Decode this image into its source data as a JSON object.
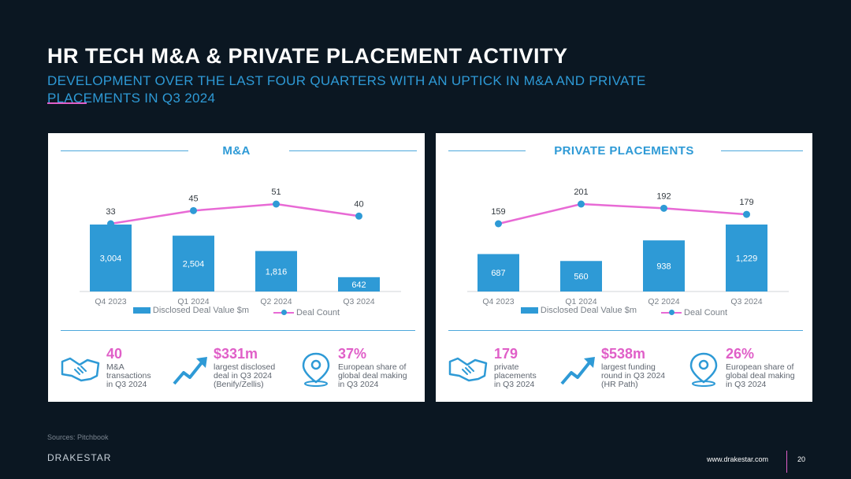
{
  "title": "HR TECH M&A & PRIVATE PLACEMENT ACTIVITY",
  "subtitle": "DEVELOPMENT OVER THE LAST FOUR QUARTERS WITH AN UPTICK IN M&A AND PRIVATE PLACEMENTS IN Q3 2024",
  "colors": {
    "bar": "#2e9ad6",
    "line": "#e86ad5",
    "accent": "#e05fc8",
    "bg": "#0b1722"
  },
  "chart_data": [
    {
      "type": "bar+line",
      "title": "M&A",
      "categories": [
        "Q4 2023",
        "Q1 2024",
        "Q2 2024",
        "Q3 2024"
      ],
      "series": [
        {
          "name": "Disclosed Deal Value $m",
          "kind": "bar",
          "values": [
            3004,
            2504,
            1816,
            642
          ],
          "labels": [
            "3,004",
            "2,504",
            "1,816",
            "642"
          ]
        },
        {
          "name": "Deal Count",
          "kind": "line",
          "values": [
            33,
            45,
            51,
            40
          ]
        }
      ],
      "ylim_bar": [
        0,
        3004
      ],
      "ylim_line": [
        33,
        51
      ]
    },
    {
      "type": "bar+line",
      "title": "PRIVATE PLACEMENTS",
      "categories": [
        "Q4 2023",
        "Q1 2024",
        "Q2 2024",
        "Q3 2024"
      ],
      "series": [
        {
          "name": "Disclosed Deal Value $m",
          "kind": "bar",
          "values": [
            687,
            560,
            938,
            1229
          ],
          "labels": [
            "687",
            "560",
            "938",
            "1,229"
          ]
        },
        {
          "name": "Deal Count",
          "kind": "line",
          "values": [
            159,
            201,
            192,
            179
          ]
        }
      ],
      "ylim_bar": [
        0,
        1229
      ],
      "ylim_line": [
        159,
        201
      ]
    }
  ],
  "stats": [
    [
      {
        "icon": "handshake-icon",
        "value": "40",
        "desc": "M&A\ntransactions\nin Q3 2024"
      },
      {
        "icon": "trend-up-icon",
        "value": "$331m",
        "desc": "largest disclosed\ndeal in Q3 2024\n(Benify/Zellis)"
      },
      {
        "icon": "location-pin-icon",
        "value": "37%",
        "desc": "European share of\nglobal deal making\nin Q3 2024"
      }
    ],
    [
      {
        "icon": "handshake-icon",
        "value": "179",
        "desc": "private\nplacements\nin Q3 2024"
      },
      {
        "icon": "trend-up-icon",
        "value": "$538m",
        "desc": "largest funding\nround in Q3 2024\n(HR Path)"
      },
      {
        "icon": "location-pin-icon",
        "value": "26%",
        "desc": "European share of\nglobal deal making\nin Q3 2024"
      }
    ]
  ],
  "footer": {
    "source": "Sources: Pitchbook",
    "brand": "DRAKESTAR",
    "website": "www.drakestar.com",
    "page": "20"
  }
}
